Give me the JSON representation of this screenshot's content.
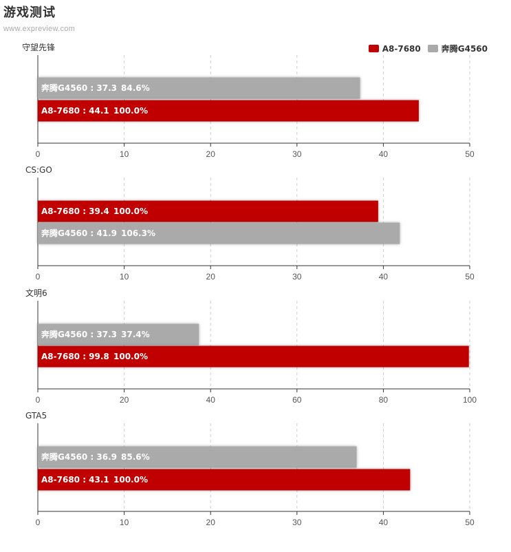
{
  "page": {
    "title": "游戏测试",
    "subtitle": "www.expreview.com"
  },
  "legend": [
    {
      "name": "A8-7680",
      "color": "#c00000"
    },
    {
      "name": "奔腾G4560",
      "color": "#aaaaaa"
    }
  ],
  "chart_data": [
    {
      "type": "bar",
      "orientation": "horizontal",
      "title": "守望先锋",
      "xlim": [
        0,
        50
      ],
      "ticks": [
        0,
        10,
        20,
        30,
        40,
        50
      ],
      "bars": [
        {
          "series": "奔腾G4560",
          "value": 37.3,
          "pct": "84.6%",
          "label": "奔腾G4560 : 37.3",
          "color": "#aaaaaa"
        },
        {
          "series": "A8-7680",
          "value": 44.1,
          "pct": "100.0%",
          "label": "A8-7680 : 44.1",
          "color": "#c00000"
        }
      ]
    },
    {
      "type": "bar",
      "orientation": "horizontal",
      "title": "CS:GO",
      "xlim": [
        0,
        50
      ],
      "ticks": [
        0,
        10,
        20,
        30,
        40,
        50
      ],
      "bars": [
        {
          "series": "A8-7680",
          "value": 39.4,
          "pct": "100.0%",
          "label": "A8-7680 : 39.4",
          "color": "#c00000"
        },
        {
          "series": "奔腾G4560",
          "value": 41.9,
          "pct": "106.3%",
          "label": "奔腾G4560 : 41.9",
          "color": "#aaaaaa"
        }
      ]
    },
    {
      "type": "bar",
      "orientation": "horizontal",
      "title": "文明6",
      "xlim": [
        0,
        100
      ],
      "ticks": [
        0,
        20,
        40,
        60,
        80,
        100
      ],
      "bars": [
        {
          "series": "奔腾G4560",
          "value": 37.3,
          "pct": "37.4%",
          "label": "奔腾G4560 : 37.3",
          "color": "#aaaaaa"
        },
        {
          "series": "A8-7680",
          "value": 99.8,
          "pct": "100.0%",
          "label": "A8-7680 : 99.8",
          "color": "#c00000"
        }
      ]
    },
    {
      "type": "bar",
      "orientation": "horizontal",
      "title": "GTA5",
      "xlim": [
        0,
        50
      ],
      "ticks": [
        0,
        10,
        20,
        30,
        40,
        50
      ],
      "bars": [
        {
          "series": "奔腾G4560",
          "value": 36.9,
          "pct": "85.6%",
          "label": "奔腾G4560 : 36.9",
          "color": "#aaaaaa"
        },
        {
          "series": "A8-7680",
          "value": 43.1,
          "pct": "100.0%",
          "label": "A8-7680 : 43.1",
          "color": "#c00000"
        }
      ]
    }
  ]
}
